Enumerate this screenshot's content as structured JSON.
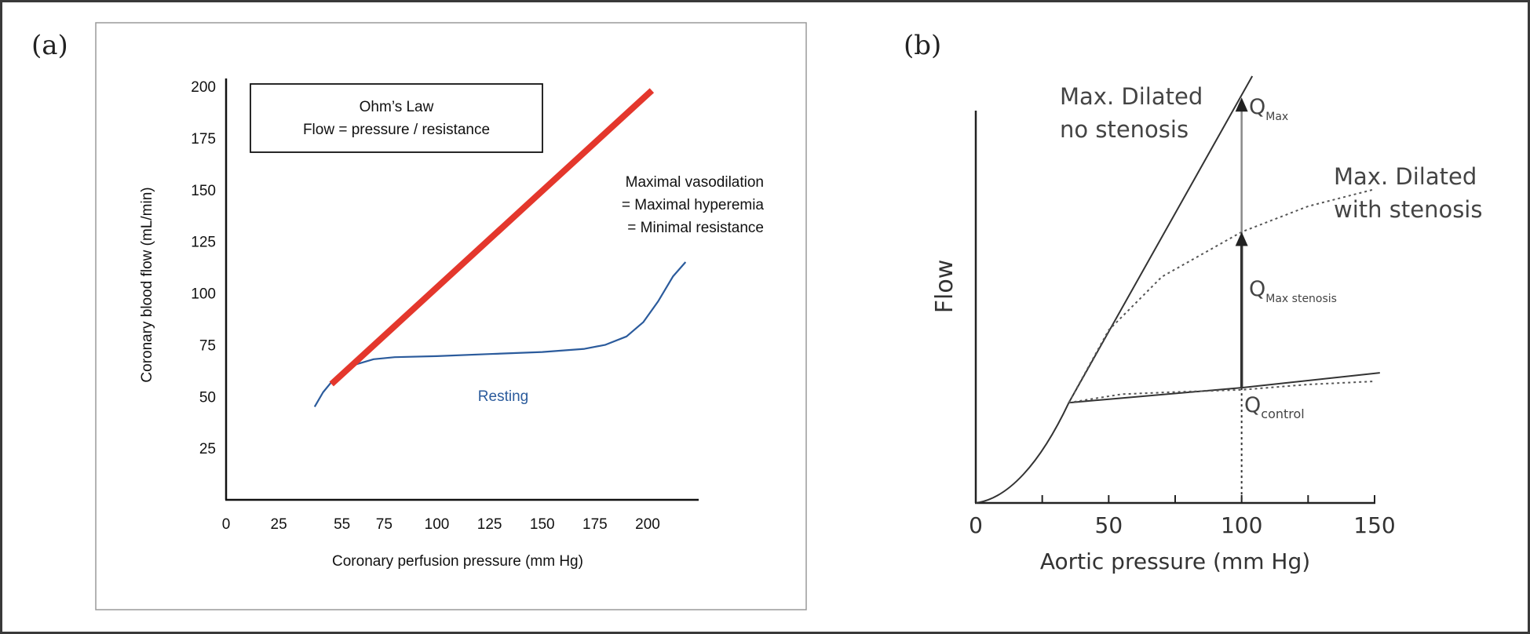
{
  "chart_data": [
    {
      "panel_label": "(a)",
      "type": "line",
      "title": "",
      "xlabel": "Coronary perfusion pressure (mm Hg)",
      "ylabel": "Coronary blood flow (mL/min)",
      "xlim": [
        0,
        225
      ],
      "ylim": [
        0,
        200
      ],
      "xticks": [
        0,
        25,
        55,
        75,
        100,
        125,
        150,
        175,
        200
      ],
      "yticks": [
        25,
        50,
        75,
        100,
        125,
        150,
        175,
        200
      ],
      "grid": false,
      "legend": "none",
      "box_text": [
        "Ohm’s Law",
        "Flow = pressure / resistance"
      ],
      "annotation_lines": [
        "Maximal vasodilation",
        "= Maximal hyperemia",
        "= Minimal resistance"
      ],
      "series": [
        {
          "name": "",
          "color": "#e4372c",
          "x": [
            50,
            202
          ],
          "y": [
            56,
            198
          ]
        },
        {
          "name": "Resting",
          "color": "#2b5b9c",
          "x": [
            42,
            46,
            50,
            55,
            60,
            70,
            80,
            100,
            125,
            150,
            170,
            180,
            190,
            198,
            205,
            212,
            218
          ],
          "y": [
            45,
            52,
            57,
            62,
            65,
            68,
            69,
            69.5,
            70.5,
            71.5,
            73,
            75,
            79,
            86,
            96,
            108,
            115
          ]
        }
      ]
    },
    {
      "panel_label": "(b)",
      "type": "line",
      "title": "",
      "xlabel": "Aortic pressure (mm Hg)",
      "ylabel": "Flow",
      "xlim": [
        0,
        150
      ],
      "xticks": [
        0,
        50,
        100,
        150
      ],
      "grid": false,
      "legend": "none",
      "labels": {
        "no_stenosis": [
          "Max. Dilated",
          "no stenosis"
        ],
        "with_stenosis": [
          "Max. Dilated",
          "with stenosis"
        ],
        "q_max": "Q",
        "q_max_sub": "Max",
        "q_stenosis": "Q",
        "q_stenosis_sub": "Max stenosis",
        "q_control": "Q",
        "q_control_sub": "control"
      },
      "series": [
        {
          "name": "",
          "style": "solid",
          "x": [
            0,
            12,
            24,
            35,
            100,
            104
          ],
          "y": [
            0,
            0.06,
            0.24,
            0.47,
            1.9,
            2.0
          ]
        },
        {
          "name": "",
          "style": "solid",
          "x": [
            35,
            100,
            152
          ],
          "y": [
            0.47,
            0.54,
            0.61
          ]
        },
        {
          "name": "",
          "style": "dotted",
          "x": [
            35,
            55,
            75,
            100,
            125,
            150
          ],
          "y": [
            0.47,
            0.51,
            0.52,
            0.53,
            0.555,
            0.57
          ]
        },
        {
          "name": "",
          "style": "dotted",
          "x": [
            35,
            50,
            70,
            100,
            125,
            150
          ],
          "y": [
            0.47,
            0.81,
            1.06,
            1.27,
            1.39,
            1.47
          ]
        }
      ],
      "arrows": [
        {
          "x": 100,
          "from": 0.54,
          "to": 1.9,
          "color": "#8a8a8a"
        },
        {
          "x": 100,
          "from": 0.54,
          "to": 1.27,
          "color": "#333333"
        }
      ]
    }
  ]
}
